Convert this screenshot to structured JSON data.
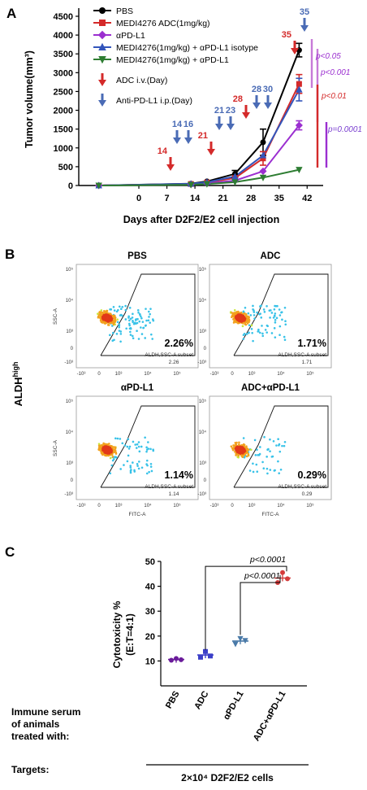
{
  "chart_data": [
    {
      "panel": "A",
      "type": "line",
      "ylabel": "Tumor volume(mm³)",
      "xlabel": "Days after D2F2/E2 cell injection",
      "xlim": [
        -15,
        46
      ],
      "ylim": [
        0,
        4500
      ],
      "xticks": [
        0,
        7,
        14,
        21,
        28,
        35,
        42
      ],
      "yticks": [
        0,
        500,
        1000,
        1500,
        2000,
        2500,
        3000,
        3500,
        4000,
        4500
      ],
      "series": [
        {
          "name": "PBS",
          "color": "#000000",
          "marker": "circle",
          "points": [
            [
              -10,
              0
            ],
            [
              13,
              50
            ],
            [
              17,
              110
            ],
            [
              24,
              310
            ],
            [
              31,
              1150
            ],
            [
              40,
              3600
            ]
          ]
        },
        {
          "name": "MEDI4276 ADC(1mg/kg)",
          "color": "#d42a2a",
          "marker": "square",
          "points": [
            [
              -10,
              0
            ],
            [
              13,
              40
            ],
            [
              17,
              80
            ],
            [
              24,
              200
            ],
            [
              31,
              720
            ],
            [
              40,
              2700
            ]
          ]
        },
        {
          "name": "αPD-L1",
          "color": "#9b2fd0",
          "marker": "diamond",
          "points": [
            [
              -10,
              0
            ],
            [
              13,
              30
            ],
            [
              17,
              60
            ],
            [
              24,
              130
            ],
            [
              31,
              380
            ],
            [
              40,
              1600
            ]
          ]
        },
        {
          "name": "MEDI4276(1mg/kg) + αPD-L1 isotype",
          "color": "#3355bb",
          "marker": "triangle",
          "points": [
            [
              -10,
              0
            ],
            [
              13,
              45
            ],
            [
              17,
              90
            ],
            [
              24,
              240
            ],
            [
              31,
              800
            ],
            [
              40,
              2550
            ]
          ]
        },
        {
          "name": "MEDI4276(1mg/kg) + αPD-L1",
          "color": "#2e7d32",
          "marker": "triangle-down",
          "points": [
            [
              -10,
              0
            ],
            [
              13,
              20
            ],
            [
              17,
              40
            ],
            [
              24,
              90
            ],
            [
              31,
              210
            ],
            [
              40,
              420
            ]
          ]
        }
      ],
      "legend_extra": [
        "ADC i.v.(Day)",
        "Anti-PD-L1 i.p.(Day)"
      ],
      "adc_days": [
        "14",
        "21",
        "28",
        "35"
      ],
      "anti_pdl1_days": [
        "14",
        "16",
        "21",
        "23",
        "28",
        "30",
        "35"
      ],
      "pvalues": [
        "p<0.05",
        "p<0.001",
        "p<0.01",
        "p=0.0001"
      ]
    },
    {
      "panel": "B",
      "type": "scatter",
      "ylabel": "ALDH",
      "ylabel_sup": "high",
      "xaxis": "FITC-A",
      "yaxis": "SSC-A",
      "subset_label": "ALDH,SSC-A subset",
      "plots": [
        {
          "title": "PBS",
          "percent": "2.26%",
          "subset_value": "2.26"
        },
        {
          "title": "ADC",
          "percent": "1.71%",
          "subset_value": "1.71"
        },
        {
          "title": "αPD-L1",
          "percent": "1.14%",
          "subset_value": "1.14"
        },
        {
          "title": "ADC+αPD-L1",
          "percent": "0.29%",
          "subset_value": "0.29"
        }
      ],
      "yticks": [
        "10⁵",
        "10⁴",
        "10³",
        "0",
        "-10³"
      ],
      "xticks": [
        "-10³",
        "0",
        "10³",
        "10⁴",
        "10⁵"
      ]
    },
    {
      "panel": "C",
      "type": "scatter",
      "ylabel": "Cytotoxicity %",
      "ylabel2": "(E:T=4:1)",
      "ylim": [
        0,
        50
      ],
      "yticks": [
        10,
        20,
        30,
        40,
        50
      ],
      "categories": [
        "PBS",
        "ADC",
        "αPD-L1",
        "ADC+αPD-L1"
      ],
      "colors": [
        "#6a1b9a",
        "#3b3fc8",
        "#4a7aa8",
        "#d43c3c"
      ],
      "values": [
        [
          10.3,
          11.0,
          10.5
        ],
        [
          11.5,
          13.8,
          12.0
        ],
        [
          16.8,
          19.0,
          18.2
        ],
        [
          41.5,
          45.5,
          43.0
        ]
      ],
      "means": [
        10.6,
        12.4,
        18.0,
        43.3
      ],
      "comparisons": [
        "p<0.0001",
        "p<0.0001"
      ],
      "row_label": "Immune serum\nof animals\ntreated with:",
      "targets_label": "Targets:",
      "targets_value": "2×10⁴ D2F2/E2 cells"
    }
  ],
  "panels": {
    "a": "A",
    "b": "B",
    "c": "C"
  }
}
